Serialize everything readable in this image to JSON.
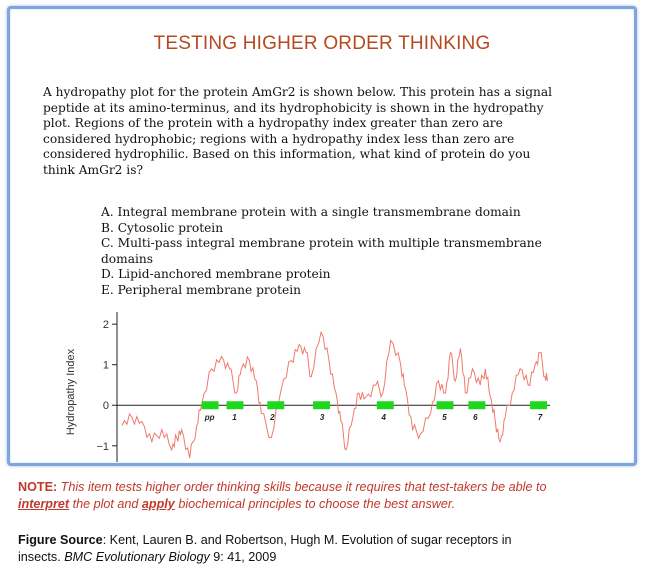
{
  "title": "TESTING HIGHER ORDER THINKING",
  "question": {
    "lines": [
      "A hydropathy plot for the protein AmGr2 is shown below. This protein has a signal",
      "peptide at its amino-terminus, and its hydrophobicity is shown in the hydropathy",
      "plot. Regions of the protein with a hydropathy index greater than zero are",
      "considered hydrophobic; regions with a hydropathy index less than zero are",
      "considered hydrophilic. Based on this information, what kind of protein do you",
      "think AmGr2 is?"
    ]
  },
  "options": [
    "A. Integral membrane protein with a single transmembrane domain",
    "B. Cytosolic protein",
    "C. Multi-pass integral membrane protein with multiple transmembrane",
    "domains",
    "D. Lipid-anchored membrane protein",
    "E. Peripheral membrane protein"
  ],
  "chart_data": {
    "type": "line",
    "ylabel": "Hydropathy Index",
    "ylim": [
      -1.4,
      2.3
    ],
    "yticks": [
      2,
      1,
      0,
      -1
    ],
    "ytick_labels": [
      "2",
      "1",
      "0",
      "−1"
    ],
    "xlim": [
      0,
      430
    ],
    "series": [
      {
        "color": "#ef7a6a",
        "x": [
          0,
          10,
          20,
          30,
          40,
          50,
          55,
          60,
          68,
          75,
          80,
          90,
          100,
          108,
          115,
          120,
          128,
          135,
          140,
          150,
          160,
          170,
          178,
          185,
          190,
          200,
          208,
          215,
          220,
          225,
          232,
          238,
          245,
          255,
          262,
          270,
          280,
          285,
          292,
          300,
          310,
          318,
          325,
          330,
          335,
          340,
          345,
          352,
          360,
          365,
          370,
          375,
          380,
          385,
          392,
          400,
          408,
          415,
          420,
          425,
          428
        ],
        "y": [
          -0.5,
          -0.3,
          -0.4,
          -0.9,
          -0.6,
          -1.1,
          -0.8,
          -0.6,
          -1.3,
          -0.5,
          0.0,
          0.9,
          1.2,
          0.9,
          0.3,
          0.9,
          1.1,
          0.6,
          -0.2,
          -0.8,
          0.4,
          1.1,
          1.5,
          1.3,
          0.7,
          1.8,
          1.1,
          0.3,
          -0.4,
          -1.1,
          -0.3,
          0.3,
          0.2,
          0.5,
          0.3,
          1.6,
          1.0,
          0.4,
          -0.6,
          -0.7,
          -0.2,
          0.6,
          0.3,
          1.3,
          0.6,
          1.4,
          0.3,
          0.9,
          0.5,
          0.9,
          0.2,
          -0.4,
          -0.9,
          -0.3,
          0.3,
          0.9,
          0.5,
          1.0,
          1.3,
          0.7,
          0.6
        ]
      }
    ],
    "segments": [
      {
        "label": "pp",
        "x_start": 80,
        "x_end": 97,
        "label_x": 88
      },
      {
        "label": "1",
        "x_start": 105,
        "x_end": 122,
        "label_x": 113
      },
      {
        "label": "2",
        "x_start": 146,
        "x_end": 163,
        "label_x": 151
      },
      {
        "label": "3",
        "x_start": 192,
        "x_end": 209,
        "label_x": 201
      },
      {
        "label": "4",
        "x_start": 256,
        "x_end": 273,
        "label_x": 263
      },
      {
        "label": "5",
        "x_start": 316,
        "x_end": 333,
        "label_x": 324
      },
      {
        "label": "6",
        "x_start": 348,
        "x_end": 365,
        "label_x": 355
      },
      {
        "label": "7",
        "x_start": 410,
        "x_end": 427,
        "label_x": 420
      }
    ],
    "segment_color": "#1ed81e"
  },
  "note": {
    "lead": "NOTE:",
    "text1": " This item tests higher order thinking skills because it requires that test-takers be able to",
    "emph1": "interpret",
    "text2": " the plot and ",
    "emph2": "apply",
    "text3": " biochemical principles to choose the best answer."
  },
  "source": {
    "lead": "Figure Source",
    "text1": ": Kent, Lauren B. and Robertson, Hugh M. Evolution of sugar receptors in",
    "text2": "insects. ",
    "journal": "BMC Evolutionary Biology",
    "text3": " 9: 41, 2009"
  }
}
